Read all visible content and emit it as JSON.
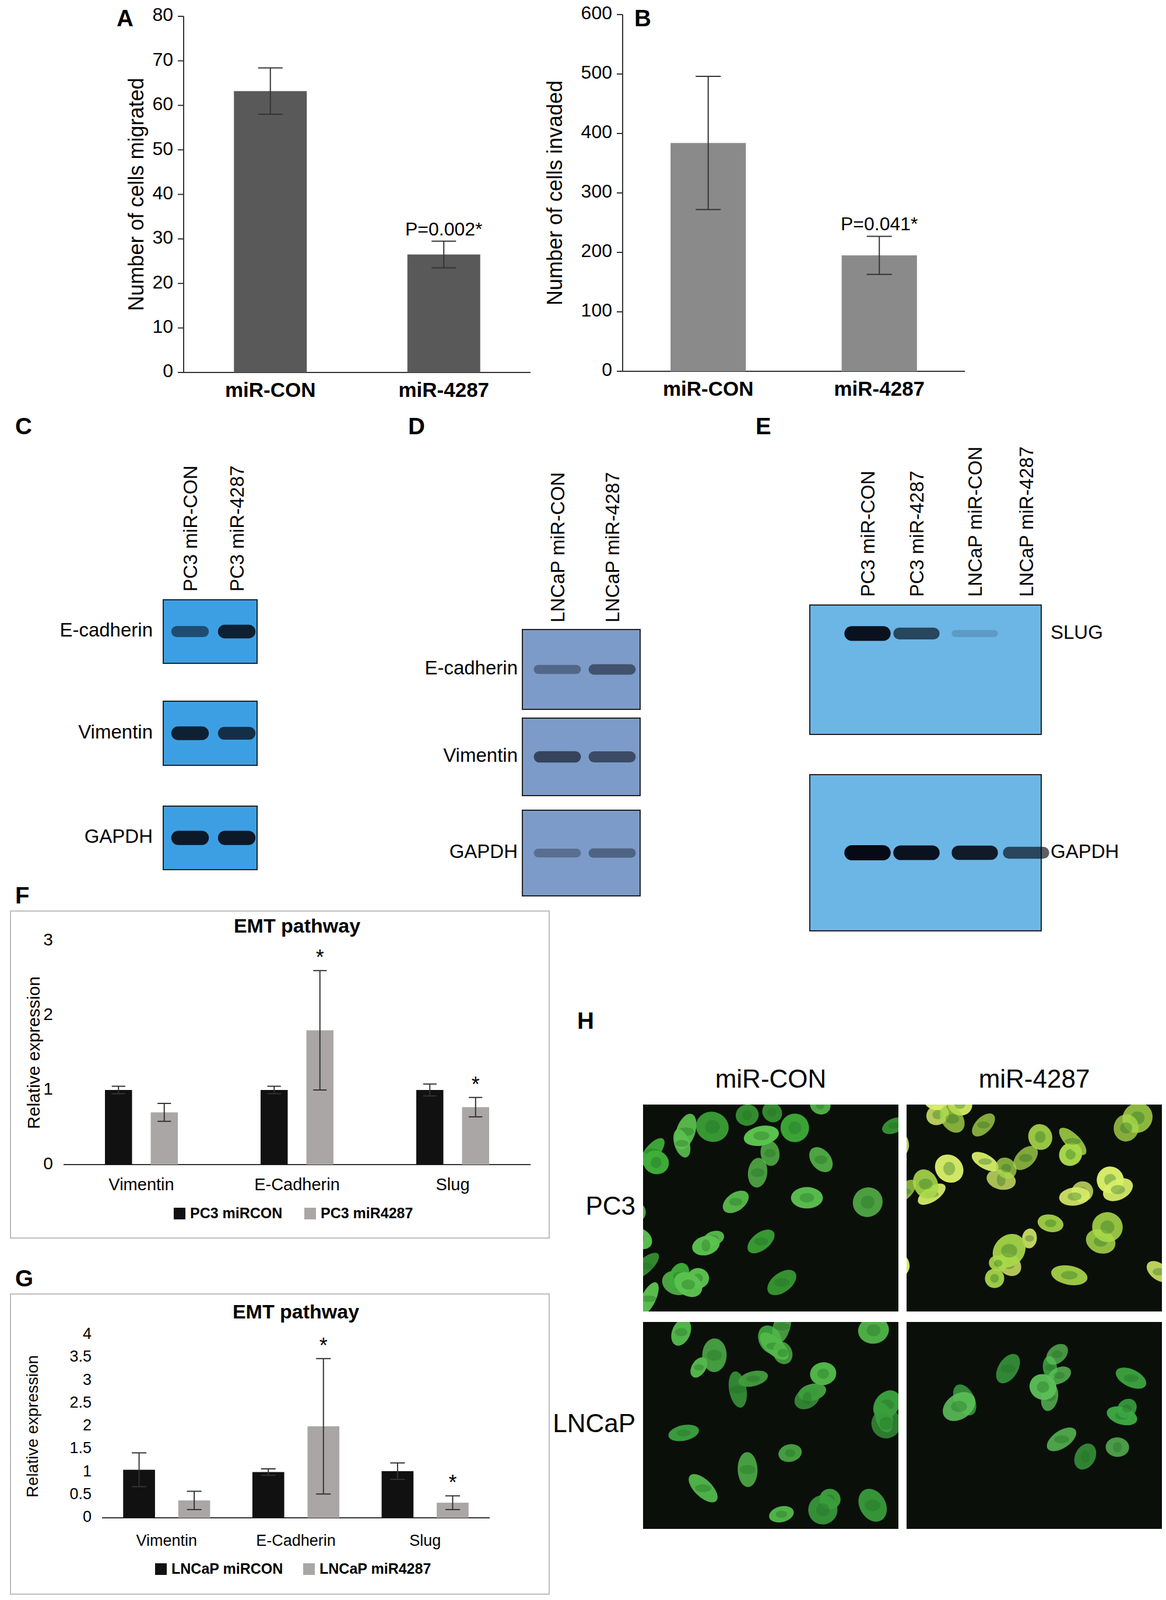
{
  "chart_data": [
    {
      "panel": "A",
      "type": "bar",
      "y_label": "Number of cells migrated",
      "categories": [
        "miR-CON",
        "miR-4287"
      ],
      "values": [
        63.2,
        26.5
      ],
      "errors": [
        5.2,
        3.0
      ],
      "significance": [
        null,
        "P=0.002*"
      ],
      "color": "#595959",
      "ylim": [
        0,
        80
      ],
      "yticks": [
        0,
        10,
        20,
        30,
        40,
        50,
        60,
        70,
        80
      ],
      "grid": false
    },
    {
      "panel": "B",
      "type": "bar",
      "y_label": "Number of cells invaded",
      "categories": [
        "miR-CON",
        "miR-4287"
      ],
      "values": [
        384,
        195
      ],
      "errors": [
        112,
        32
      ],
      "significance": [
        null,
        "P=0.041*"
      ],
      "color": "#8a8a8a",
      "ylim": [
        0,
        600
      ],
      "yticks": [
        0,
        100,
        200,
        300,
        400,
        500,
        600
      ],
      "grid": false
    },
    {
      "panel": "F",
      "type": "bar",
      "title": "EMT pathway",
      "y_label": "Relative expression",
      "categories": [
        "Vimentin",
        "E-Cadherin",
        "Slug"
      ],
      "series": [
        {
          "name": "PC3 miRCON",
          "color": "#111111",
          "values": [
            1.0,
            1.0,
            1.0
          ],
          "errors": [
            0.05,
            0.05,
            0.08
          ],
          "significance": [
            null,
            null,
            null
          ]
        },
        {
          "name": "PC3 miR4287",
          "color": "#aaa6a6",
          "values": [
            0.7,
            1.8,
            0.77
          ],
          "errors": [
            0.12,
            0.8,
            0.13
          ],
          "significance": [
            null,
            "*",
            "*"
          ]
        }
      ],
      "ylim": [
        0,
        3
      ],
      "yticks": [
        0,
        1,
        2,
        3
      ],
      "legend": "bottom",
      "grid": false
    },
    {
      "panel": "G",
      "type": "bar",
      "title": "EMT pathway",
      "y_label": "Relative expression",
      "categories": [
        "Vimentin",
        "E-Cadherin",
        "Slug"
      ],
      "series": [
        {
          "name": "LNCaP miRCON",
          "color": "#111111",
          "values": [
            1.05,
            1.0,
            1.02
          ],
          "errors": [
            0.37,
            0.07,
            0.18
          ],
          "significance": [
            null,
            null,
            null
          ]
        },
        {
          "name": "LNCaP miR4287",
          "color": "#aaa6a6",
          "values": [
            0.38,
            2.0,
            0.33
          ],
          "errors": [
            0.2,
            1.48,
            0.15
          ],
          "significance": [
            null,
            "*",
            "*"
          ]
        }
      ],
      "ylim": [
        0,
        4
      ],
      "yticks": [
        0,
        0.5,
        1,
        1.5,
        2,
        2.5,
        3,
        3.5,
        4
      ],
      "legend": "bottom",
      "grid": false
    }
  ],
  "blots": [
    {
      "panel": "C",
      "color": "#3d9fe3",
      "lanes": [
        "PC3 miR-CON",
        "PC3  miR-4287"
      ],
      "rows": [
        {
          "label": "E-cadherin",
          "bands": [
            0.55,
            0.85
          ]
        },
        {
          "label": "Vimentin",
          "bands": [
            0.85,
            0.75
          ]
        },
        {
          "label": "GAPDH",
          "bands": [
            0.9,
            0.9
          ]
        }
      ]
    },
    {
      "panel": "D",
      "color": "#7d9bc8",
      "lanes": [
        "LNCaP miR-CON",
        "LNCaP miR-4287"
      ],
      "rows": [
        {
          "label": "E-cadherin",
          "bands": [
            0.35,
            0.5
          ]
        },
        {
          "label": "Vimentin",
          "bands": [
            0.6,
            0.55
          ]
        },
        {
          "label": "GAPDH",
          "bands": [
            0.3,
            0.38
          ]
        }
      ]
    },
    {
      "panel": "E",
      "color": "#6cb6e6",
      "lanes": [
        "PC3 miR-CON",
        "PC3  miR-4287",
        "LNCaP miR-CON",
        "LNCaP miR-4287"
      ],
      "rows": [
        {
          "label": "SLUG",
          "bands": [
            0.95,
            0.65,
            0.15,
            0.0
          ]
        },
        {
          "label": "GAPDH",
          "bands": [
            1.0,
            0.95,
            0.9,
            0.65
          ]
        }
      ]
    }
  ],
  "micrographs": {
    "panel": "H",
    "columns": [
      "miR-CON",
      "miR-4287"
    ],
    "rows": [
      "PC3",
      "LNCaP"
    ]
  }
}
